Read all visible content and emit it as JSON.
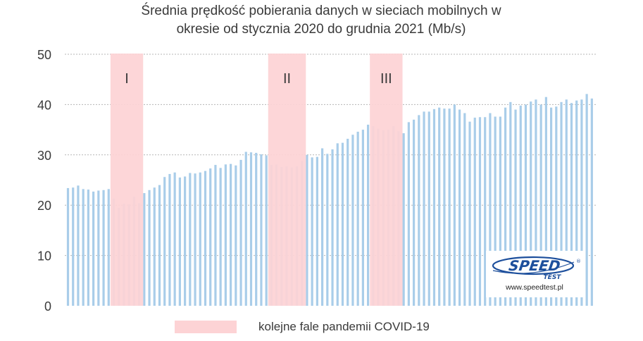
{
  "chart_data": {
    "type": "bar",
    "title_line1": "Średnia prędkość pobierania danych w sieciach mobilnych w",
    "title_line2": "okresie od stycznia 2020 do grudnia 2021 (Mb/s)",
    "xlabel": "",
    "ylabel": "",
    "ylim": [
      0,
      50
    ],
    "yticks": [
      0,
      10,
      20,
      30,
      40,
      50
    ],
    "grid": true,
    "bar_color": "#a9cde9",
    "grid_color": "#b5b5b5",
    "values": [
      23.4,
      23.5,
      23.9,
      23.2,
      23.1,
      22.7,
      22.9,
      23.0,
      23.2,
      21.3,
      19.5,
      20.3,
      20.2,
      21.7,
      20.4,
      22.4,
      23.0,
      23.5,
      24.0,
      25.6,
      26.2,
      26.5,
      25.5,
      25.7,
      26.4,
      26.3,
      26.5,
      26.8,
      27.3,
      28.0,
      27.4,
      28.1,
      28.2,
      27.9,
      29.0,
      30.6,
      30.5,
      30.4,
      30.1,
      29.9,
      28.0,
      28.1,
      27.6,
      27.7,
      27.5,
      27.7,
      28.8,
      30.0,
      29.5,
      29.6,
      31.3,
      30.2,
      31.1,
      32.3,
      32.4,
      33.2,
      34.0,
      34.6,
      35.0,
      36.0,
      35.7,
      35.2,
      34.9,
      35.0,
      35.7,
      34.7,
      34.3,
      36.5,
      37.0,
      37.9,
      38.6,
      38.6,
      39.1,
      39.4,
      39.2,
      39.2,
      40.0,
      39.0,
      38.3,
      36.6,
      37.4,
      37.5,
      37.5,
      38.3,
      37.6,
      37.6,
      39.4,
      40.5,
      39.0,
      39.8,
      40.0,
      40.6,
      41.0,
      40.0,
      41.5,
      39.4,
      39.6,
      40.5,
      41.0,
      40.3,
      40.8,
      41.0,
      42.1,
      41.2
    ],
    "pandemic_waves": [
      {
        "label": "I",
        "start_index": 9,
        "end_index": 14
      },
      {
        "label": "II",
        "start_index": 40,
        "end_index": 46
      },
      {
        "label": "III",
        "start_index": 60,
        "end_index": 65
      }
    ],
    "wave_color": "#fdd3d5",
    "legend": {
      "label": "kolejne fale pandemii COVID-19",
      "position": "bottom"
    }
  },
  "logo": {
    "name_top": "SPEED",
    "name_bottom": "TEST",
    "registered": "®",
    "url": "www.speedtest.pl",
    "color": "#1d4f9c"
  }
}
